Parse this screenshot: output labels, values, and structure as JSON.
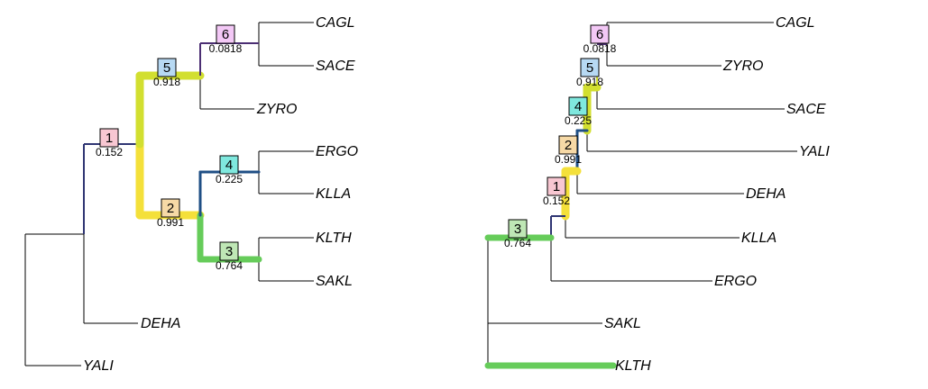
{
  "colors": {
    "branch": "#000000",
    "node1": "#2f3573",
    "node2": "#f4e03a",
    "node3": "#66cc5a",
    "node4": "#1f4f85",
    "node5": "#d2df30",
    "node6": "#4b2e73",
    "box1": "#f8c7d2",
    "box2": "#f6d9a6",
    "box3": "#bfe7b5",
    "box4": "#7fe8de",
    "box5": "#b7d9f3",
    "box6": "#f3c8f6"
  },
  "left_tree": {
    "leaves": [
      "CAGL",
      "SACE",
      "ZYRO",
      "ERGO",
      "KLLA",
      "KLTH",
      "SAKL",
      "DEHA",
      "YALI"
    ],
    "nodes": [
      {
        "id": "1",
        "support": "0.152"
      },
      {
        "id": "2",
        "support": "0.991"
      },
      {
        "id": "3",
        "support": "0.764"
      },
      {
        "id": "4",
        "support": "0.225"
      },
      {
        "id": "5",
        "support": "0.918"
      },
      {
        "id": "6",
        "support": "0.0818"
      }
    ]
  },
  "right_tree": {
    "leaves": [
      "CAGL",
      "ZYRO",
      "SACE",
      "YALI",
      "DEHA",
      "KLLA",
      "ERGO",
      "SAKL",
      "KLTH"
    ],
    "nodes": [
      {
        "id": "1",
        "support": "0.152"
      },
      {
        "id": "2",
        "support": "0.991"
      },
      {
        "id": "3",
        "support": "0.764"
      },
      {
        "id": "4",
        "support": "0.225"
      },
      {
        "id": "5",
        "support": "0.918"
      },
      {
        "id": "6",
        "support": "0.0818"
      }
    ]
  }
}
